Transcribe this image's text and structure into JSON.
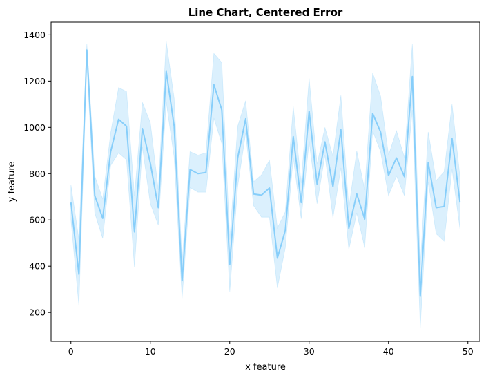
{
  "chart_data": {
    "type": "line",
    "title": "Line Chart, Centered Error",
    "xlabel": "x feature",
    "ylabel": "y feature",
    "xlim": [
      -2.5,
      51.5
    ],
    "ylim": [
      75,
      1455
    ],
    "x_ticks": [
      0,
      10,
      20,
      30,
      40,
      50
    ],
    "y_ticks": [
      200,
      400,
      600,
      800,
      1000,
      1200,
      1400
    ],
    "grid": false,
    "legend": "none",
    "colors": {
      "line": "#87cefa",
      "band": "#87cefa"
    },
    "series": [
      {
        "x": [
          0,
          1,
          2,
          3,
          4,
          5,
          6,
          7,
          8,
          9,
          10,
          11,
          12,
          13,
          14,
          15,
          16,
          17,
          18,
          19,
          20,
          21,
          22,
          23,
          24,
          25,
          26,
          27,
          28,
          29,
          30,
          31,
          32,
          33,
          34,
          35,
          36,
          37,
          38,
          39,
          40,
          41,
          42,
          43,
          44,
          45,
          46,
          47,
          48,
          49
        ],
        "y": [
          675,
          365,
          1335,
          705,
          607,
          895,
          1035,
          1005,
          548,
          995,
          845,
          653,
          1242,
          1005,
          337,
          818,
          800,
          805,
          1185,
          1075,
          408,
          868,
          1037,
          712,
          707,
          738,
          435,
          555,
          960,
          675,
          1070,
          755,
          937,
          744,
          990,
          564,
          712,
          604,
          1060,
          980,
          792,
          868,
          787,
          1220,
          270,
          848,
          653,
          658,
          952,
          675
        ],
        "lower": [
          600,
          230,
          1270,
          630,
          520,
          835,
          890,
          860,
          395,
          915,
          670,
          578,
          1110,
          870,
          262,
          740,
          720,
          720,
          1040,
          930,
          290,
          745,
          975,
          662,
          612,
          612,
          306,
          480,
          870,
          605,
          940,
          670,
          880,
          610,
          825,
          472,
          630,
          480,
          985,
          895,
          705,
          790,
          705,
          1075,
          135,
          765,
          540,
          508,
          820,
          560
        ],
        "upper": [
          752,
          515,
          1362,
          790,
          690,
          975,
          1172,
          1155,
          705,
          1108,
          1020,
          730,
          1372,
          1125,
          420,
          895,
          880,
          890,
          1320,
          1280,
          515,
          1005,
          1115,
          765,
          795,
          858,
          565,
          635,
          1090,
          760,
          1212,
          840,
          1000,
          875,
          1138,
          650,
          898,
          730,
          1235,
          1135,
          880,
          985,
          870,
          1360,
          405,
          980,
          770,
          808,
          1100,
          785
        ]
      }
    ]
  }
}
